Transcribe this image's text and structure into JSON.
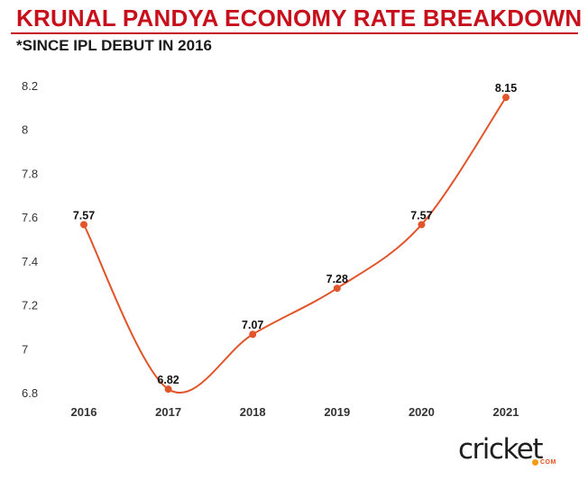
{
  "header": {
    "title": "KRUNAL PANDYA ECONOMY RATE BREAKDOWN",
    "subtitle": "*SINCE IPL DEBUT IN 2016"
  },
  "colors": {
    "title": "#c8101d",
    "line": "#e2542a",
    "marker": "#e2542a"
  },
  "logo": {
    "text": "cricket",
    "sub": "COM"
  },
  "chart_data": {
    "type": "line",
    "title": "KRUNAL PANDYA ECONOMY RATE BREAKDOWN",
    "subtitle": "*SINCE IPL DEBUT IN 2016",
    "xlabel": "",
    "ylabel": "",
    "x": [
      "2016",
      "2017",
      "2018",
      "2019",
      "2020",
      "2021"
    ],
    "series": [
      {
        "values": [
          7.57,
          6.82,
          7.07,
          7.28,
          7.57,
          8.15
        ],
        "labels": [
          "7.57",
          "6.82",
          "7.07",
          "7.28",
          "7.57",
          "8.15"
        ]
      }
    ],
    "ylim": [
      6.8,
      8.2
    ],
    "yticks": [
      "6.8",
      "7",
      "7.2",
      "7.4",
      "7.6",
      "7.8",
      "8",
      "8.2"
    ],
    "grid": false,
    "smooth": true,
    "markers": true,
    "legend": "none"
  }
}
